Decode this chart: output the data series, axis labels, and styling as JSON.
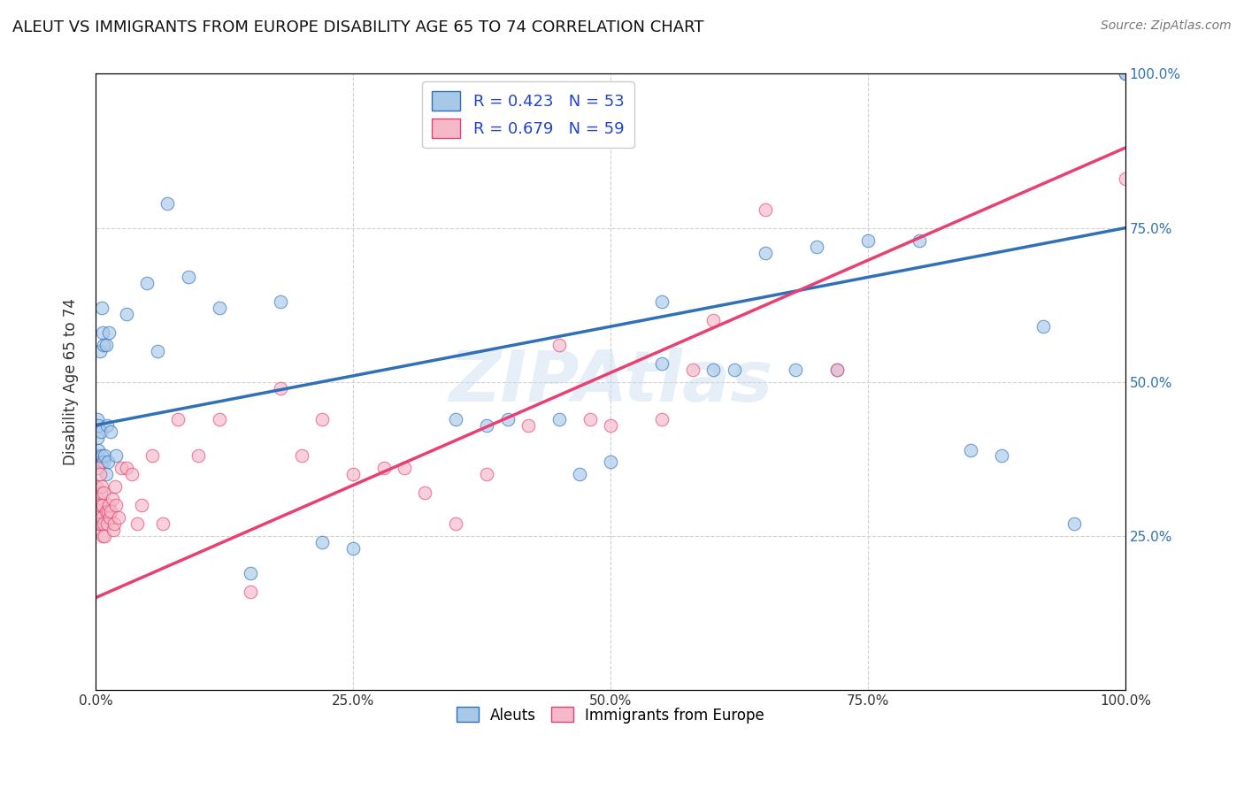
{
  "title": "ALEUT VS IMMIGRANTS FROM EUROPE DISABILITY AGE 65 TO 74 CORRELATION CHART",
  "source": "Source: ZipAtlas.com",
  "ylabel": "Disability Age 65 to 74",
  "blue_R": 0.423,
  "blue_N": 53,
  "pink_R": 0.679,
  "pink_N": 59,
  "blue_color": "#a8c8e8",
  "pink_color": "#f4b8c8",
  "blue_line_color": "#3070b8",
  "pink_line_color": "#e84070",
  "legend_text_color": "#2244cc",
  "background_color": "#ffffff",
  "grid_color": "#cccccc",
  "blue_line_x0": 0.0,
  "blue_line_y0": 0.43,
  "blue_line_x1": 1.0,
  "blue_line_y1": 0.75,
  "pink_line_x0": 0.0,
  "pink_line_y0": 0.15,
  "pink_line_x1": 1.0,
  "pink_line_y1": 0.88,
  "blue_x": [
    0.001,
    0.002,
    0.002,
    0.003,
    0.003,
    0.004,
    0.005,
    0.005,
    0.006,
    0.006,
    0.007,
    0.008,
    0.008,
    0.009,
    0.01,
    0.01,
    0.011,
    0.012,
    0.013,
    0.015,
    0.02,
    0.03,
    0.05,
    0.06,
    0.07,
    0.09,
    0.12,
    0.18,
    0.55,
    0.6,
    0.65,
    0.7,
    0.72,
    0.75,
    0.8,
    0.85,
    0.92,
    0.95,
    1.0,
    1.0,
    0.4,
    0.45,
    0.5,
    0.62,
    0.68,
    0.35,
    0.38,
    0.25,
    0.15,
    0.47,
    0.22,
    0.88,
    0.55
  ],
  "blue_y": [
    0.38,
    0.41,
    0.44,
    0.39,
    0.43,
    0.55,
    0.37,
    0.42,
    0.38,
    0.62,
    0.58,
    0.37,
    0.56,
    0.38,
    0.35,
    0.56,
    0.43,
    0.37,
    0.58,
    0.42,
    0.38,
    0.61,
    0.66,
    0.55,
    0.79,
    0.67,
    0.62,
    0.63,
    0.53,
    0.52,
    0.71,
    0.72,
    0.52,
    0.73,
    0.73,
    0.39,
    0.59,
    0.27,
    1.0,
    1.0,
    0.44,
    0.44,
    0.37,
    0.52,
    0.52,
    0.44,
    0.43,
    0.23,
    0.19,
    0.35,
    0.24,
    0.38,
    0.63
  ],
  "pink_x": [
    0.001,
    0.001,
    0.002,
    0.002,
    0.003,
    0.003,
    0.004,
    0.004,
    0.005,
    0.005,
    0.006,
    0.006,
    0.007,
    0.007,
    0.008,
    0.008,
    0.009,
    0.01,
    0.011,
    0.012,
    0.013,
    0.014,
    0.015,
    0.016,
    0.017,
    0.018,
    0.019,
    0.02,
    0.022,
    0.025,
    0.03,
    0.035,
    0.04,
    0.045,
    0.055,
    0.065,
    0.08,
    0.1,
    0.12,
    0.15,
    0.18,
    0.2,
    0.22,
    0.25,
    0.28,
    0.3,
    0.32,
    0.35,
    0.38,
    0.42,
    0.45,
    0.48,
    0.5,
    0.55,
    0.58,
    0.6,
    0.65,
    0.72,
    1.0
  ],
  "pink_y": [
    0.33,
    0.28,
    0.31,
    0.36,
    0.29,
    0.27,
    0.3,
    0.35,
    0.27,
    0.32,
    0.28,
    0.33,
    0.25,
    0.3,
    0.27,
    0.32,
    0.25,
    0.29,
    0.27,
    0.29,
    0.3,
    0.28,
    0.29,
    0.31,
    0.26,
    0.27,
    0.33,
    0.3,
    0.28,
    0.36,
    0.36,
    0.35,
    0.27,
    0.3,
    0.38,
    0.27,
    0.44,
    0.38,
    0.44,
    0.16,
    0.49,
    0.38,
    0.44,
    0.35,
    0.36,
    0.36,
    0.32,
    0.27,
    0.35,
    0.43,
    0.56,
    0.44,
    0.43,
    0.44,
    0.52,
    0.6,
    0.78,
    0.52,
    0.83
  ],
  "xlim": [
    0.0,
    1.0
  ],
  "ylim": [
    0.0,
    1.0
  ],
  "xtick_labels": [
    "0.0%",
    "25.0%",
    "50.0%",
    "75.0%",
    "100.0%"
  ],
  "xtick_vals": [
    0.0,
    0.25,
    0.5,
    0.75,
    1.0
  ],
  "ytick_labels": [
    "25.0%",
    "50.0%",
    "75.0%",
    "100.0%"
  ],
  "ytick_vals": [
    0.25,
    0.5,
    0.75,
    1.0
  ],
  "watermark": "ZIPAtlas",
  "legend_labels": [
    "Aleuts",
    "Immigrants from Europe"
  ]
}
